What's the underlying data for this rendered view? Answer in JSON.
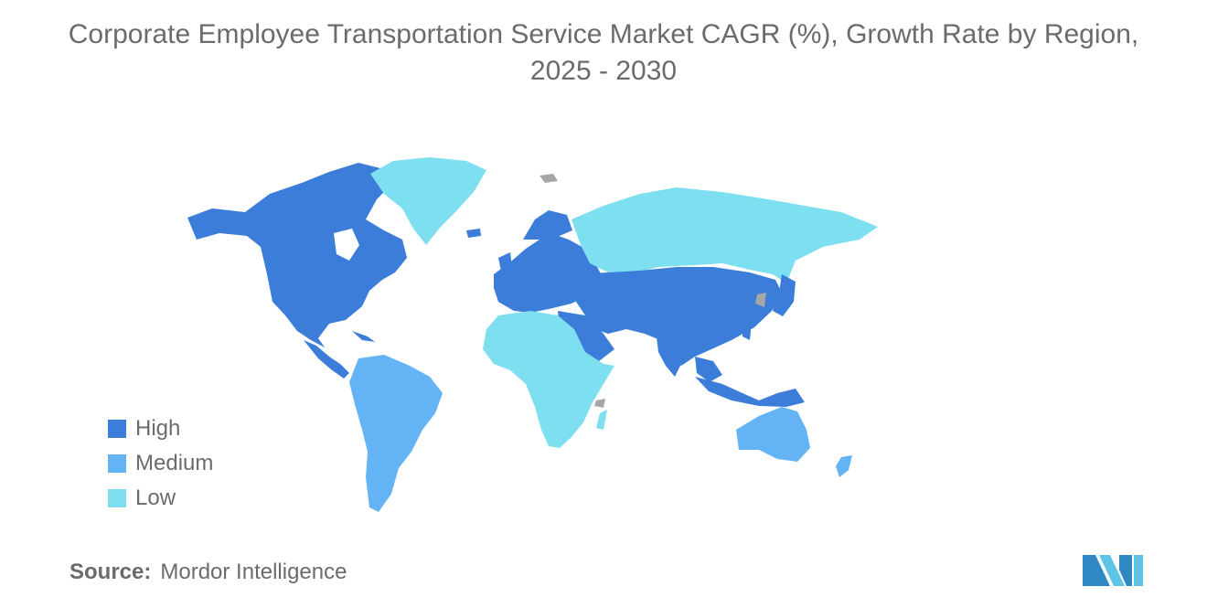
{
  "title": {
    "line1": "Corporate Employee Transportation Service Market CAGR (%), Growth Rate by Region,",
    "line2": "2025 - 2030"
  },
  "legend": [
    {
      "label": "High",
      "color": "#3b7dd8"
    },
    {
      "label": "Medium",
      "color": "#64b3f4"
    },
    {
      "label": "Low",
      "color": "#7ddff0"
    }
  ],
  "colors": {
    "high": "#3b7dd8",
    "medium": "#64b3f4",
    "low": "#7ddff0",
    "no_data": "#a6a6a6",
    "text": "#6b6b6b",
    "logo": "#2f88c4"
  },
  "regions": [
    {
      "name": "North America",
      "level": "High"
    },
    {
      "name": "Europe",
      "level": "High"
    },
    {
      "name": "Asia-Pacific",
      "level": "High"
    },
    {
      "name": "Middle East",
      "level": "High"
    },
    {
      "name": "South America",
      "level": "Medium"
    },
    {
      "name": "Australia & New Zealand",
      "level": "Medium"
    },
    {
      "name": "Africa",
      "level": "Low"
    },
    {
      "name": "Russia",
      "level": "Low"
    },
    {
      "name": "Greenland",
      "level": "Low"
    }
  ],
  "source": {
    "label": "Source:",
    "value": "Mordor Intelligence"
  },
  "logo_icon": "mordor-intelligence-logo"
}
